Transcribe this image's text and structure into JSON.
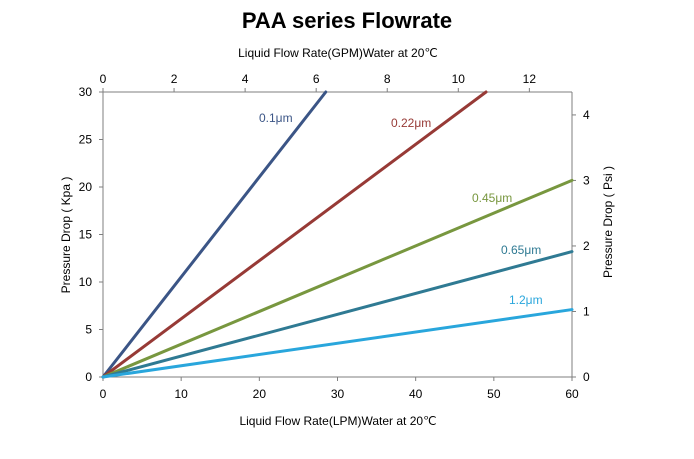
{
  "chart_data": {
    "type": "line",
    "title": "PAA series Flowrate",
    "xlabel": "Liquid Flow Rate(LPM)Water  at  20℃",
    "x2label": "Liquid Flow Rate(GPM)Water  at  20℃",
    "ylabel": "Pressure Drop ( Kpa )",
    "y2label": "Pressure Drop ( Psi )",
    "xlim": [
      0,
      60
    ],
    "ylim": [
      0,
      30
    ],
    "x2lim": [
      0,
      13.2
    ],
    "y2lim": [
      0,
      4.35
    ],
    "xticks": [
      0,
      10,
      20,
      30,
      40,
      50,
      60
    ],
    "yticks": [
      0,
      5,
      10,
      15,
      20,
      25,
      30
    ],
    "x2ticks": [
      0,
      2,
      4,
      6,
      8,
      10,
      12
    ],
    "y2ticks": [
      0,
      1,
      2,
      3,
      4
    ],
    "grid": false,
    "series": [
      {
        "name": "0.1μm",
        "color": "#3b5586",
        "x": [
          0,
          28.5
        ],
        "y": [
          0,
          30
        ]
      },
      {
        "name": "0.22μm",
        "color": "#973a36",
        "x": [
          0,
          49
        ],
        "y": [
          0,
          30
        ]
      },
      {
        "name": "0.45μm",
        "color": "#78973f",
        "x": [
          0,
          60
        ],
        "y": [
          0,
          20.7
        ]
      },
      {
        "name": "0.65μm",
        "color": "#2f7a93",
        "x": [
          0,
          60
        ],
        "y": [
          0,
          13.2
        ]
      },
      {
        "name": "1.2μm",
        "color": "#29a6dc",
        "x": [
          0,
          60
        ],
        "y": [
          0,
          7.1
        ]
      }
    ]
  }
}
